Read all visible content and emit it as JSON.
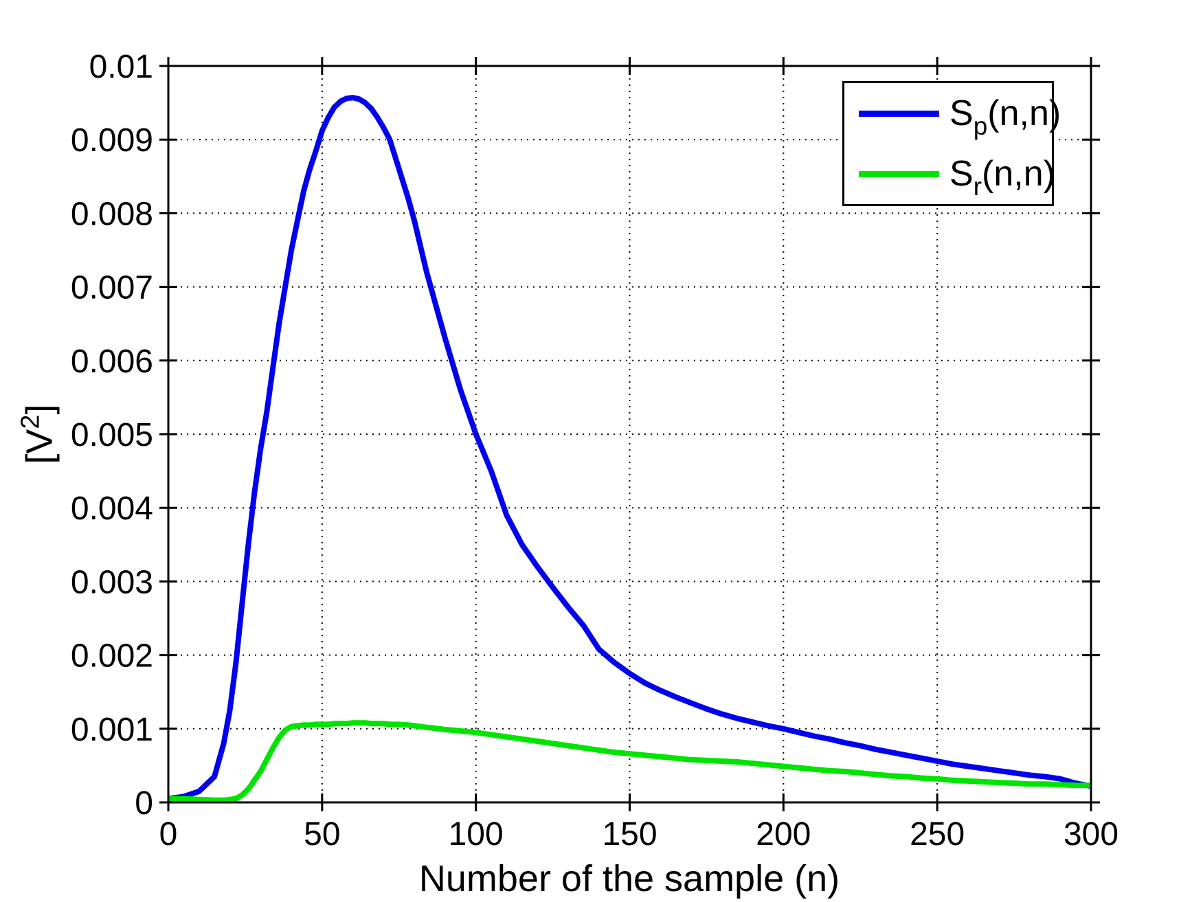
{
  "chart_data": {
    "type": "line",
    "title": "",
    "xlabel": "Number of the sample (n)",
    "ylabel": "[V2]",
    "ylabel_parts": {
      "open": "[V",
      "sup": "2",
      "close": "]"
    },
    "xlim": [
      0,
      300
    ],
    "ylim": [
      0,
      0.01
    ],
    "grid": true,
    "grid_style": "dotted",
    "legend_position": "top-right",
    "axis_color": "#000000",
    "background_color": "#ffffff",
    "x_tick_values": [
      0,
      50,
      100,
      150,
      200,
      250,
      300
    ],
    "x_tick_labels": [
      "0",
      "50",
      "100",
      "150",
      "200",
      "250",
      "300"
    ],
    "y_tick_values": [
      0,
      0.001,
      0.002,
      0.003,
      0.004,
      0.005,
      0.006,
      0.007,
      0.008,
      0.009,
      0.01
    ],
    "y_tick_labels": [
      "0",
      "0.001",
      "0.002",
      "0.003",
      "0.004",
      "0.005",
      "0.006",
      "0.007",
      "0.008",
      "0.009",
      "0.01"
    ],
    "x": [
      0,
      5,
      10,
      15,
      18,
      20,
      22,
      24,
      26,
      28,
      30,
      32,
      34,
      36,
      38,
      40,
      42,
      44,
      46,
      48,
      50,
      52,
      54,
      56,
      58,
      60,
      62,
      64,
      66,
      68,
      70,
      72,
      75,
      78,
      80,
      84,
      88,
      90,
      95,
      100,
      105,
      110,
      115,
      120,
      125,
      130,
      135,
      140,
      145,
      150,
      155,
      160,
      165,
      170,
      175,
      180,
      185,
      190,
      195,
      200,
      205,
      210,
      215,
      220,
      225,
      230,
      235,
      240,
      245,
      250,
      255,
      260,
      265,
      270,
      275,
      280,
      285,
      290,
      295,
      300
    ],
    "series": [
      {
        "name": "Sp(n,n)",
        "base": "S",
        "sub": "p",
        "args": "(n,n)",
        "color": "#0000EE",
        "line_width": 8,
        "values": [
          5e-05,
          8e-05,
          0.00015,
          0.00035,
          0.0008,
          0.00125,
          0.0019,
          0.0027,
          0.0035,
          0.0042,
          0.0048,
          0.0053,
          0.0059,
          0.0065,
          0.007,
          0.0075,
          0.0079,
          0.0083,
          0.0086,
          0.00885,
          0.00912,
          0.0093,
          0.00944,
          0.00952,
          0.00956,
          0.00957,
          0.00955,
          0.0095,
          0.00942,
          0.0093,
          0.00916,
          0.009,
          0.0086,
          0.0082,
          0.0079,
          0.0072,
          0.0066,
          0.0063,
          0.0056,
          0.005,
          0.0045,
          0.0039,
          0.0035,
          0.0032,
          0.00292,
          0.00265,
          0.0024,
          0.00208,
          0.0019,
          0.00175,
          0.00162,
          0.00152,
          0.00143,
          0.00135,
          0.00127,
          0.0012,
          0.00114,
          0.00109,
          0.00104,
          0.001,
          0.00095,
          0.0009,
          0.00086,
          0.00081,
          0.00077,
          0.00072,
          0.00068,
          0.00064,
          0.0006,
          0.00056,
          0.00052,
          0.00049,
          0.00046,
          0.00043,
          0.0004,
          0.00037,
          0.00035,
          0.00032,
          0.00026,
          0.00022
        ]
      },
      {
        "name": "Sr(n,n)",
        "base": "S",
        "sub": "r",
        "args": "(n,n)",
        "color": "#00E400",
        "line_width": 8,
        "values": [
          5e-05,
          5e-05,
          4e-05,
          3e-05,
          3e-05,
          4e-05,
          5e-05,
          0.0001,
          0.00018,
          0.0003,
          0.00042,
          0.00058,
          0.00074,
          0.00088,
          0.00098,
          0.00103,
          0.00104,
          0.00105,
          0.00105,
          0.00106,
          0.00106,
          0.00106,
          0.00107,
          0.00107,
          0.00107,
          0.00108,
          0.00108,
          0.00108,
          0.00107,
          0.00107,
          0.00107,
          0.00106,
          0.00106,
          0.00105,
          0.00104,
          0.00102,
          0.001,
          0.00099,
          0.00097,
          0.00095,
          0.00092,
          0.00089,
          0.00086,
          0.00083,
          0.0008,
          0.00077,
          0.00074,
          0.00071,
          0.00068,
          0.00066,
          0.00064,
          0.00062,
          0.0006,
          0.00058,
          0.00057,
          0.00056,
          0.00055,
          0.00053,
          0.00051,
          0.00049,
          0.00047,
          0.00045,
          0.00043,
          0.00042,
          0.0004,
          0.00038,
          0.00036,
          0.00035,
          0.00033,
          0.00032,
          0.0003,
          0.00029,
          0.00028,
          0.00027,
          0.00026,
          0.00025,
          0.00025,
          0.00024,
          0.00023,
          0.00023
        ]
      }
    ]
  }
}
